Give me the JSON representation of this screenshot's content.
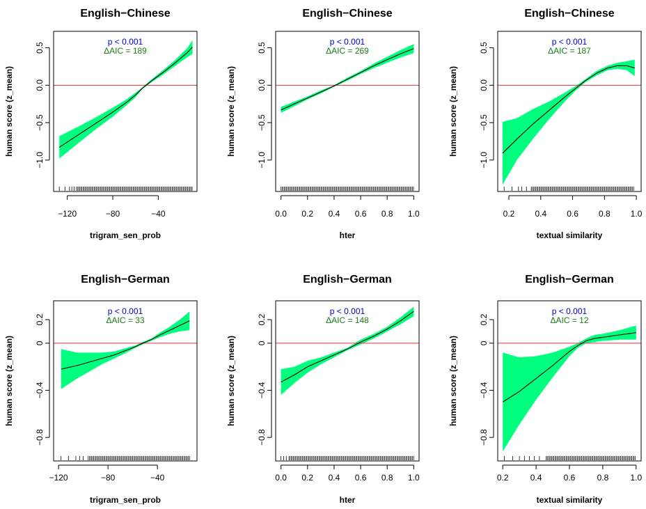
{
  "colors": {
    "band": "#00ff7f",
    "line": "#000000",
    "reference": "#e03030",
    "p_text": "#0000cc",
    "aic_text": "#1a7a1a",
    "axis": "#000000"
  },
  "chart_data": [
    {
      "type": "line",
      "title": "English−Chinese",
      "xlabel": "trigram_sen_prob",
      "ylabel": "human score (z_mean)",
      "annotation_p": "p < 0.001",
      "annotation_aic": "ΔAIC = 189",
      "xlim": [
        -132,
        -6
      ],
      "ylim": [
        -1.42,
        0.72
      ],
      "xticks": [
        -120,
        -80,
        -40
      ],
      "yticks": [
        -1.0,
        -0.5,
        0.0,
        0.5
      ],
      "ytick_labels": [
        "−1.0",
        "−0.5",
        "0.0",
        "0.5"
      ],
      "xtick_labels": [
        "−120",
        "−80",
        "−40"
      ],
      "reference_y": 0,
      "x": [
        -127,
        -110,
        -95,
        -80,
        -68,
        -60,
        -54,
        -45,
        -35,
        -25,
        -15,
        -10
      ],
      "y": [
        -0.83,
        -0.66,
        -0.51,
        -0.36,
        -0.23,
        -0.13,
        -0.04,
        0.07,
        0.18,
        0.3,
        0.43,
        0.51
      ],
      "lower": [
        -0.98,
        -0.77,
        -0.59,
        -0.42,
        -0.27,
        -0.16,
        -0.05,
        0.05,
        0.15,
        0.26,
        0.37,
        0.42
      ],
      "upper": [
        -0.68,
        -0.55,
        -0.43,
        -0.3,
        -0.19,
        -0.1,
        -0.03,
        0.09,
        0.21,
        0.34,
        0.49,
        0.6
      ],
      "rug": {
        "start": -112,
        "end": -10,
        "sparse": [
          -127,
          -122,
          -118,
          -116,
          -114
        ]
      }
    },
    {
      "type": "line",
      "title": "English−Chinese",
      "xlabel": "hter",
      "ylabel": "human score (z_mean)",
      "annotation_p": "p < 0.001",
      "annotation_aic": "ΔAIC = 269",
      "xlim": [
        -0.04,
        1.04
      ],
      "ylim": [
        -1.42,
        0.72
      ],
      "xticks": [
        0.0,
        0.2,
        0.4,
        0.6,
        0.8,
        1.0
      ],
      "xtick_labels": [
        "0.0",
        "0.2",
        "0.4",
        "0.6",
        "0.8",
        "1.0"
      ],
      "yticks": [
        -1.0,
        -0.5,
        0.0,
        0.5
      ],
      "ytick_labels": [
        "−1.0",
        "−0.5",
        "0.0",
        "0.5"
      ],
      "reference_y": 0,
      "x": [
        0.0,
        0.1,
        0.2,
        0.3,
        0.4,
        0.5,
        0.6,
        0.7,
        0.8,
        0.9,
        1.0
      ],
      "y": [
        -0.33,
        -0.25,
        -0.17,
        -0.09,
        -0.01,
        0.08,
        0.17,
        0.26,
        0.34,
        0.42,
        0.49
      ],
      "lower": [
        -0.37,
        -0.28,
        -0.19,
        -0.11,
        -0.02,
        0.06,
        0.15,
        0.23,
        0.3,
        0.37,
        0.43
      ],
      "upper": [
        -0.29,
        -0.22,
        -0.15,
        -0.07,
        0.0,
        0.1,
        0.19,
        0.29,
        0.38,
        0.47,
        0.55
      ],
      "rug": {
        "start": 0.0,
        "end": 1.0,
        "sparse": []
      }
    },
    {
      "type": "line",
      "title": "English−Chinese",
      "xlabel": "textual similarity",
      "ylabel": "human score (z_mean)",
      "annotation_p": "p < 0.001",
      "annotation_aic": "ΔAIC = 187",
      "xlim": [
        0.13,
        1.03
      ],
      "ylim": [
        -1.42,
        0.72
      ],
      "xticks": [
        0.2,
        0.4,
        0.6,
        0.8,
        1.0
      ],
      "xtick_labels": [
        "0.2",
        "0.4",
        "0.6",
        "0.8",
        "1.0"
      ],
      "yticks": [
        -1.0,
        -0.5,
        0.0,
        0.5
      ],
      "ytick_labels": [
        "−1.0",
        "−0.5",
        "0.0",
        "0.5"
      ],
      "reference_y": 0,
      "x": [
        0.16,
        0.25,
        0.35,
        0.45,
        0.55,
        0.62,
        0.68,
        0.75,
        0.82,
        0.88,
        0.94,
        0.99
      ],
      "y": [
        -0.91,
        -0.72,
        -0.52,
        -0.34,
        -0.16,
        -0.04,
        0.06,
        0.16,
        0.23,
        0.26,
        0.26,
        0.23
      ],
      "lower": [
        -1.33,
        -1.0,
        -0.72,
        -0.46,
        -0.22,
        -0.07,
        0.04,
        0.13,
        0.2,
        0.22,
        0.2,
        0.12
      ],
      "upper": [
        -0.49,
        -0.44,
        -0.32,
        -0.22,
        -0.1,
        -0.01,
        0.08,
        0.19,
        0.26,
        0.3,
        0.32,
        0.34
      ],
      "rug": {
        "start": 0.34,
        "end": 0.99,
        "sparse": [
          0.17,
          0.22,
          0.26,
          0.28,
          0.31
        ]
      }
    },
    {
      "type": "line",
      "title": "English−German",
      "xlabel": "trigram_sen_prob",
      "ylabel": "human score (z_mean)",
      "annotation_p": "p < 0.001",
      "annotation_aic": "ΔAIC = 33",
      "xlim": [
        -124,
        -8
      ],
      "ylim": [
        -1.0,
        0.36
      ],
      "xticks": [
        -120,
        -80,
        -40
      ],
      "xtick_labels": [
        "−120",
        "−80",
        "−40"
      ],
      "yticks": [
        -0.8,
        -0.4,
        0.0,
        0.2
      ],
      "ytick_labels": [
        "−0.8",
        "−0.4",
        "0",
        "0.2"
      ],
      "reference_y": 0,
      "x": [
        -118,
        -105,
        -95,
        -85,
        -75,
        -65,
        -58,
        -52,
        -45,
        -38,
        -30,
        -22,
        -14
      ],
      "y": [
        -0.22,
        -0.19,
        -0.16,
        -0.13,
        -0.1,
        -0.06,
        -0.03,
        0.0,
        0.03,
        0.07,
        0.11,
        0.15,
        0.19
      ],
      "lower": [
        -0.39,
        -0.3,
        -0.24,
        -0.18,
        -0.13,
        -0.08,
        -0.04,
        -0.01,
        0.02,
        0.05,
        0.08,
        0.1,
        0.11
      ],
      "upper": [
        -0.05,
        -0.08,
        -0.08,
        -0.08,
        -0.07,
        -0.04,
        -0.02,
        0.01,
        0.04,
        0.09,
        0.14,
        0.2,
        0.27
      ],
      "rug": {
        "start": -96,
        "end": -14,
        "sparse": [
          -118,
          -112,
          -106,
          -103,
          -100
        ]
      }
    },
    {
      "type": "line",
      "title": "English−German",
      "xlabel": "hter",
      "ylabel": "human score (z_mean)",
      "annotation_p": "p < 0.001",
      "annotation_aic": "ΔAIC = 148",
      "xlim": [
        -0.04,
        1.04
      ],
      "ylim": [
        -1.0,
        0.36
      ],
      "xticks": [
        0.0,
        0.2,
        0.4,
        0.6,
        0.8,
        1.0
      ],
      "xtick_labels": [
        "0.0",
        "0.2",
        "0.4",
        "0.6",
        "0.8",
        "1.0"
      ],
      "yticks": [
        -0.8,
        -0.4,
        0.0,
        0.2
      ],
      "ytick_labels": [
        "−0.8",
        "−0.4",
        "0",
        "0.2"
      ],
      "reference_y": 0,
      "x": [
        0.0,
        0.1,
        0.2,
        0.3,
        0.4,
        0.5,
        0.6,
        0.7,
        0.8,
        0.9,
        1.0
      ],
      "y": [
        -0.33,
        -0.27,
        -0.2,
        -0.15,
        -0.1,
        -0.05,
        0.01,
        0.06,
        0.12,
        0.19,
        0.27
      ],
      "lower": [
        -0.44,
        -0.34,
        -0.25,
        -0.18,
        -0.12,
        -0.06,
        -0.01,
        0.04,
        0.1,
        0.16,
        0.23
      ],
      "upper": [
        -0.22,
        -0.2,
        -0.15,
        -0.12,
        -0.08,
        -0.04,
        0.03,
        0.08,
        0.14,
        0.22,
        0.31
      ],
      "rug": {
        "start": 0.06,
        "end": 1.0,
        "sparse": [
          0.0,
          0.02,
          0.04
        ]
      }
    },
    {
      "type": "line",
      "title": "English−German",
      "xlabel": "textual similarity",
      "ylabel": "human score (z_mean)",
      "annotation_p": "p < 0.001",
      "annotation_aic": "ΔAIC = 12",
      "xlim": [
        0.17,
        1.03
      ],
      "ylim": [
        -1.0,
        0.36
      ],
      "xticks": [
        0.2,
        0.4,
        0.6,
        0.8,
        1.0
      ],
      "xtick_labels": [
        "0.2",
        "0.4",
        "0.6",
        "0.8",
        "1.0"
      ],
      "yticks": [
        -0.8,
        -0.4,
        0.0,
        0.2
      ],
      "ytick_labels": [
        "−0.8",
        "−0.4",
        "0",
        "0.2"
      ],
      "reference_y": 0,
      "x": [
        0.2,
        0.3,
        0.4,
        0.5,
        0.6,
        0.65,
        0.7,
        0.75,
        0.8,
        0.9,
        1.0
      ],
      "y": [
        -0.5,
        -0.41,
        -0.3,
        -0.19,
        -0.07,
        -0.02,
        0.02,
        0.04,
        0.05,
        0.07,
        0.09
      ],
      "lower": [
        -0.92,
        -0.69,
        -0.48,
        -0.29,
        -0.11,
        -0.04,
        0.0,
        0.01,
        0.02,
        0.03,
        0.03
      ],
      "upper": [
        -0.08,
        -0.12,
        -0.11,
        -0.08,
        -0.03,
        0.0,
        0.04,
        0.07,
        0.08,
        0.11,
        0.15
      ],
      "rug": {
        "start": 0.46,
        "end": 1.0,
        "sparse": [
          0.21,
          0.26,
          0.3,
          0.33,
          0.36,
          0.39,
          0.42
        ]
      }
    }
  ]
}
